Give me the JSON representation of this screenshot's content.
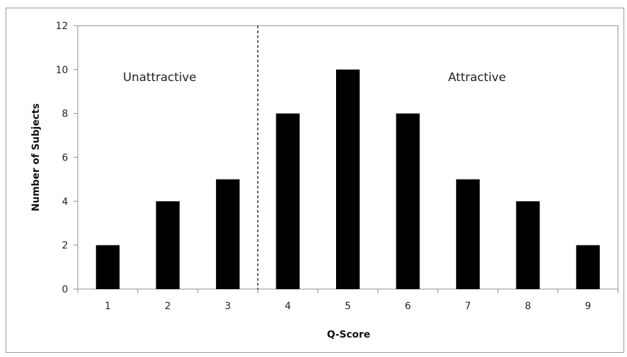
{
  "chart_data": {
    "type": "bar",
    "categories": [
      "1",
      "2",
      "3",
      "4",
      "5",
      "6",
      "7",
      "8",
      "9"
    ],
    "values": [
      2,
      4,
      5,
      8,
      10,
      8,
      5,
      4,
      2
    ],
    "title": "",
    "xlabel": "Q-Score",
    "ylabel": "Number of Subjects",
    "ylim": [
      0,
      12
    ],
    "yticks": [
      "0",
      "2",
      "4",
      "6",
      "8",
      "10",
      "12"
    ],
    "grid": false,
    "bar_color": "#000000",
    "divider_after_category": "3",
    "annotations": [
      "Unattractive",
      "Attractive"
    ]
  }
}
